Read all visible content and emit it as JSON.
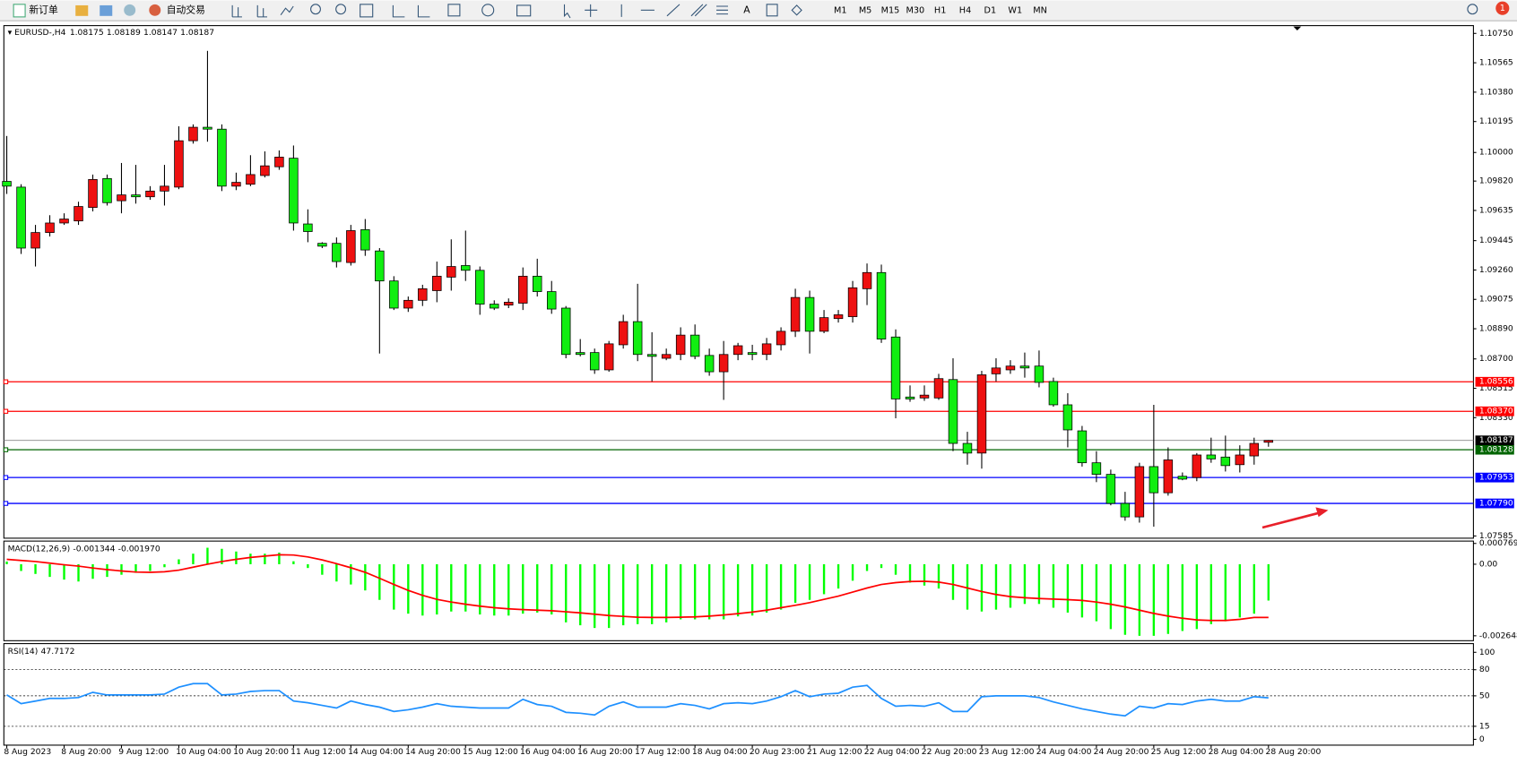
{
  "toolbar": {
    "new_order": "新订单",
    "auto_trading": "自动交易",
    "timeframes": [
      "M1",
      "M5",
      "M15",
      "M30",
      "H1",
      "H4",
      "D1",
      "W1",
      "MN"
    ],
    "badge": "1"
  },
  "chart_data": [
    {
      "type": "candlestick",
      "title": "EURUSD-,H4",
      "up_color": "#ee1111",
      "down_color": "#11ee11",
      "categories": [
        "8 Aug 2023",
        null,
        null,
        null,
        "8 Aug 20:00",
        null,
        null,
        null,
        "9 Aug 12:00",
        null,
        null,
        null,
        "10 Aug 04:00",
        null,
        null,
        null,
        "10 Aug 20:00",
        null,
        null,
        null,
        "11 Aug 12:00",
        null,
        null,
        null,
        "14 Aug 04:00",
        null,
        null,
        null,
        "14 Aug 20:00",
        null,
        null,
        null,
        "15 Aug 12:00",
        null,
        null,
        null,
        "16 Aug 04:00",
        null,
        null,
        null,
        "16 Aug 20:00",
        null,
        null,
        null,
        "17 Aug 12:00",
        null,
        null,
        null,
        "18 Aug 04:00",
        null,
        null,
        null,
        "20 Aug 23:00",
        null,
        null,
        null,
        "21 Aug 12:00",
        null,
        null,
        null,
        "22 Aug 04:00",
        null,
        null,
        null,
        "22 Aug 20:00",
        null,
        null,
        null,
        "23 Aug 12:00",
        null,
        null,
        null,
        "24 Aug 04:00",
        null,
        null,
        null,
        "24 Aug 20:00",
        null,
        null,
        null,
        "25 Aug 12:00",
        null,
        null,
        null,
        "28 Aug 04:00",
        null,
        null,
        null,
        "28 Aug 20:00"
      ],
      "open": [
        1.09818,
        1.09782,
        1.09398,
        1.09496,
        1.09556,
        1.09569,
        1.09654,
        1.09836,
        1.09696,
        1.09733,
        1.09721,
        1.09757,
        1.09782,
        1.10074,
        1.10159,
        1.10147,
        1.09788,
        1.098,
        1.09855,
        1.0991,
        1.09964,
        1.0955,
        1.09428,
        1.09428,
        1.09307,
        1.09514,
        1.0938,
        1.09191,
        1.0902,
        1.09069,
        1.0913,
        1.09215,
        1.09288,
        1.09258,
        1.09045,
        1.09039,
        1.09051,
        1.09221,
        1.09124,
        1.0902,
        1.0874,
        1.0874,
        1.08631,
        1.08789,
        1.08935,
        1.08728,
        1.08704,
        1.08728,
        1.0885,
        1.08722,
        1.08619,
        1.08728,
        1.0874,
        1.08728,
        1.08789,
        1.08874,
        1.09087,
        1.08874,
        1.08954,
        1.08966,
        1.09142,
        1.09244,
        1.08838,
        1.0846,
        1.08454,
        1.08454,
        1.0857,
        1.08168,
        1.08107,
        1.08606,
        1.08631,
        1.08655,
        1.08655,
        1.08558,
        1.08411,
        1.08247,
        1.08046,
        1.07973,
        1.0779,
        1.07705,
        1.08022,
        1.07857,
        1.07961,
        1.07953,
        1.08095,
        1.08082,
        1.08034,
        1.08089,
        1.08175
      ],
      "high": [
        1.10104,
        1.098,
        1.09544,
        1.09605,
        1.09617,
        1.0969,
        1.09861,
        1.09861,
        1.09934,
        1.09922,
        1.09788,
        1.09922,
        1.10165,
        1.10177,
        1.1064,
        1.10177,
        1.09873,
        1.09983,
        1.10007,
        1.10013,
        1.10044,
        1.09642,
        1.09435,
        1.09465,
        1.09544,
        1.09581,
        1.09398,
        1.09221,
        1.09093,
        1.09167,
        1.09313,
        1.09453,
        1.09508,
        1.09282,
        1.09069,
        1.09081,
        1.09276,
        1.09331,
        1.09191,
        1.09033,
        1.08825,
        1.08765,
        1.08813,
        1.08978,
        1.09173,
        1.08868,
        1.08765,
        1.08899,
        1.08917,
        1.08765,
        1.08813,
        1.08801,
        1.08789,
        1.08832,
        1.08899,
        1.09142,
        1.0913,
        1.09008,
        1.09008,
        1.09191,
        1.09301,
        1.09294,
        1.08886,
        1.08533,
        1.08533,
        1.08606,
        1.08704,
        1.08241,
        1.08625,
        1.08704,
        1.08692,
        1.0874,
        1.08753,
        1.08582,
        1.08484,
        1.08278,
        1.08119,
        1.08003,
        1.07863,
        1.08046,
        1.08411,
        1.08143,
        1.07985,
        1.08107,
        1.08204,
        1.08217,
        1.08156,
        1.08204,
        1.08189
      ],
      "low": [
        1.09739,
        1.09361,
        1.09282,
        1.09471,
        1.09544,
        1.09544,
        1.09629,
        1.09666,
        1.09617,
        1.09678,
        1.09702,
        1.09666,
        1.09769,
        1.10056,
        1.10068,
        1.09757,
        1.09763,
        1.09788,
        1.09843,
        1.09891,
        1.09508,
        1.09435,
        1.09398,
        1.09276,
        1.09288,
        1.09349,
        1.08734,
        1.09008,
        1.08996,
        1.09033,
        1.09057,
        1.0913,
        1.09191,
        1.08978,
        1.09008,
        1.0902,
        1.09008,
        1.09093,
        1.08984,
        1.08704,
        1.08716,
        1.08606,
        1.08619,
        1.08765,
        1.08686,
        1.08558,
        1.08692,
        1.08692,
        1.08698,
        1.08594,
        1.08442,
        1.08692,
        1.08692,
        1.08692,
        1.08753,
        1.08838,
        1.08734,
        1.08862,
        1.08929,
        1.08929,
        1.09039,
        1.08801,
        1.08326,
        1.0843,
        1.08436,
        1.08442,
        1.08119,
        1.08034,
        1.08009,
        1.08558,
        1.08606,
        1.08582,
        1.08521,
        1.08399,
        1.08143,
        1.08022,
        1.07924,
        1.07778,
        1.07681,
        1.07669,
        1.07644,
        1.07839,
        1.07936,
        1.0793,
        1.08046,
        1.07991,
        1.07985,
        1.08034,
        1.08147
      ],
      "close": [
        1.09788,
        1.09398,
        1.09496,
        1.09556,
        1.09581,
        1.0966,
        1.0983,
        1.09684,
        1.09733,
        1.09721,
        1.09757,
        1.09788,
        1.10074,
        1.10159,
        1.10147,
        1.09788,
        1.09812,
        1.09861,
        1.09916,
        1.09971,
        1.09556,
        1.09502,
        1.0941,
        1.09313,
        1.09508,
        1.09386,
        1.09191,
        1.0902,
        1.09069,
        1.09142,
        1.09221,
        1.09282,
        1.09258,
        1.09045,
        1.0902,
        1.09057,
        1.09221,
        1.09124,
        1.09014,
        1.08728,
        1.08728,
        1.08631,
        1.08795,
        1.08935,
        1.08728,
        1.08716,
        1.08728,
        1.0885,
        1.08716,
        1.08619,
        1.08728,
        1.08783,
        1.08728,
        1.08795,
        1.08874,
        1.09087,
        1.08874,
        1.0896,
        1.08978,
        1.09148,
        1.09244,
        1.08825,
        1.08448,
        1.08448,
        1.08472,
        1.08576,
        1.08168,
        1.08107,
        1.086,
        1.08643,
        1.08655,
        1.08643,
        1.08552,
        1.08411,
        1.08253,
        1.08046,
        1.07973,
        1.0779,
        1.07705,
        1.08022,
        1.07857,
        1.08064,
        1.07943,
        1.08095,
        1.0807,
        1.08028,
        1.08095,
        1.08168,
        1.08187
      ],
      "ylim": [
        1.07571,
        1.10799
      ],
      "yticks": [
        {
          "value": 1.1075,
          "label": "1.10750"
        },
        1.10565,
        {
          "value": 1.1038,
          "label": "1.10380"
        },
        1.10195,
        {
          "value": 1.1,
          "label": "1.10000"
        },
        {
          "value": 1.0982,
          "label": "1.09820"
        },
        1.09635,
        1.09445,
        {
          "value": 1.0926,
          "label": "1.09260"
        },
        1.09075,
        {
          "value": 1.0889,
          "label": "1.08890"
        },
        {
          "value": 1.087,
          "label": "1.08700"
        },
        1.08515,
        {
          "value": 1.0833,
          "label": "1.08330"
        },
        1.07585
      ],
      "levels": [
        1.08556,
        {
          "value": 1.0837,
          "label": "1.08370"
        },
        1.08128,
        1.07953,
        {
          "value": 1.0779,
          "label": "1.07790"
        }
      ],
      "level_colors": [
        "#ff0000",
        "#ff0000",
        "#006400",
        "#0000ff",
        "#0000ff"
      ]
    },
    {
      "type": "macd",
      "title": "MACD(12,26,9)",
      "ylim": [
        -0.00283,
        0.00082
      ],
      "yticks": [
        0.000769,
        {
          "value": 0,
          "label": "0.00"
        },
        -0.002648
      ],
      "series": [
        {
          "type": "histogram",
          "color": "#00ff00",
          "values": [
            0.0001,
            -0.00025,
            -0.00036,
            -0.00047,
            -0.00057,
            -0.00064,
            -0.00054,
            -0.00047,
            -0.00039,
            -0.00032,
            -0.00025,
            -0.00011,
            0.00018,
            0.00039,
            0.00061,
            0.00057,
            0.00047,
            0.00039,
            0.00039,
            0.00043,
            0.00011,
            -0.00014,
            -0.00039,
            -0.00064,
            -0.00075,
            -0.00097,
            -0.00132,
            -0.00168,
            -0.00183,
            -0.0019,
            -0.00186,
            -0.00175,
            -0.00175,
            -0.00186,
            -0.0019,
            -0.0019,
            -0.00183,
            -0.00179,
            -0.00186,
            -0.00215,
            -0.00226,
            -0.00236,
            -0.00236,
            -0.00226,
            -0.00222,
            -0.00222,
            -0.00215,
            -0.00204,
            -0.00204,
            -0.00204,
            -0.00204,
            -0.00193,
            -0.0019,
            -0.00179,
            -0.00168,
            -0.00143,
            -0.00132,
            -0.00111,
            -0.0009,
            -0.00061,
            -0.00025,
            -0.00014,
            -0.00039,
            -0.00068,
            -0.00079,
            -0.0009,
            -0.00132,
            -0.00168,
            -0.00175,
            -0.00168,
            -0.00161,
            -0.00147,
            -0.00147,
            -0.00161,
            -0.00179,
            -0.00197,
            -0.00211,
            -0.0024,
            -0.00261,
            -0.00265,
            -0.00265,
            -0.00258,
            -0.00247,
            -0.0024,
            -0.00222,
            -0.00211,
            -0.00197,
            -0.00183,
            -0.001344
          ]
        },
        {
          "type": "line",
          "color": "#ff0000",
          "values": [
            0.00018,
            0.00014,
            0.0001,
            4e-05,
            -2e-05,
            -7e-05,
            -0.00014,
            -0.0002,
            -0.00025,
            -0.00029,
            -0.0003,
            -0.00028,
            -0.00022,
            -0.00011,
            0,
            0.0001,
            0.00018,
            0.00025,
            0.0003,
            0.00035,
            0.00034,
            0.00027,
            0.00016,
            2e-05,
            -0.00013,
            -0.0003,
            -0.00052,
            -0.00075,
            -0.00097,
            -0.00115,
            -0.0013,
            -0.0014,
            -0.00148,
            -0.00155,
            -0.00161,
            -0.00165,
            -0.00168,
            -0.0017,
            -0.00172,
            -0.00176,
            -0.0018,
            -0.00185,
            -0.0019,
            -0.00193,
            -0.00196,
            -0.00197,
            -0.00197,
            -0.00196,
            -0.00195,
            -0.00192,
            -0.00188,
            -0.00183,
            -0.00177,
            -0.0017,
            -0.00161,
            -0.00152,
            -0.00142,
            -0.0013,
            -0.00118,
            -0.00103,
            -0.00088,
            -0.00075,
            -0.00068,
            -0.00064,
            -0.00063,
            -0.00066,
            -0.00075,
            -0.00088,
            -0.00101,
            -0.00112,
            -0.0012,
            -0.00124,
            -0.00127,
            -0.00129,
            -0.00131,
            -0.00134,
            -0.0014,
            -0.00148,
            -0.00158,
            -0.0017,
            -0.00182,
            -0.00192,
            -0.002,
            -0.00206,
            -0.00208,
            -0.00208,
            -0.00204,
            -0.00197,
            -0.00197
          ],
          "value_labels": [
            null,
            null,
            null,
            null,
            null,
            null,
            null,
            null,
            null,
            null,
            null,
            null,
            null,
            null,
            null,
            null,
            null,
            null,
            null,
            null,
            null,
            null,
            null,
            null,
            null,
            null,
            null,
            null,
            null,
            null,
            null,
            null,
            null,
            null,
            null,
            null,
            null,
            null,
            null,
            null,
            null,
            null,
            null,
            null,
            null,
            null,
            null,
            null,
            null,
            null,
            null,
            null,
            null,
            null,
            null,
            null,
            null,
            null,
            null,
            null,
            null,
            null,
            null,
            null,
            null,
            null,
            null,
            null,
            null,
            null,
            null,
            null,
            null,
            null,
            null,
            null,
            null,
            null,
            null,
            null,
            null,
            null,
            null,
            null,
            null,
            null,
            null,
            null,
            "-0.001970"
          ]
        }
      ]
    },
    {
      "type": "rsi",
      "title": "RSI(14)",
      "color": "#1e90ff",
      "ylim": [
        0,
        100
      ],
      "yticks": [
        100,
        80,
        50,
        15,
        0
      ],
      "values": [
        51,
        41,
        44,
        47,
        47,
        48,
        54,
        51,
        51,
        51,
        51,
        52,
        60,
        64,
        64,
        51,
        52,
        55,
        56,
        56,
        44,
        42,
        39,
        36,
        44,
        40,
        37,
        32,
        34,
        37,
        41,
        38,
        37,
        36,
        36,
        36,
        46,
        40,
        38,
        31,
        30,
        28,
        38,
        43,
        37,
        37,
        37,
        41,
        39,
        35,
        41,
        42,
        41,
        44,
        49,
        56,
        49,
        52,
        53,
        60,
        62,
        47,
        38,
        39,
        38,
        42,
        32,
        32,
        49,
        50,
        50,
        50,
        48,
        43,
        39,
        35,
        32,
        29,
        27,
        38,
        36,
        41,
        40,
        44,
        46,
        44,
        44,
        49,
        47.7172
      ]
    }
  ]
}
